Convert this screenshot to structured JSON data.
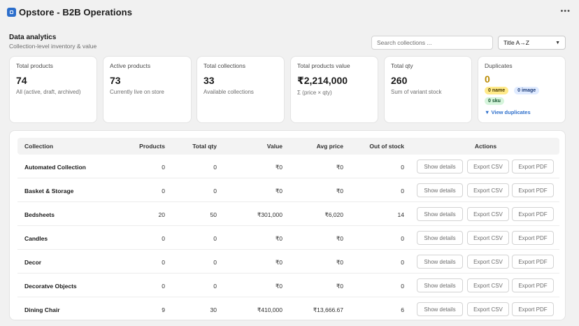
{
  "app": {
    "title": "Opstore - B2B Operations"
  },
  "section": {
    "title": "Data analytics",
    "subtitle": "Collection-level inventory & value"
  },
  "search": {
    "placeholder": "Search collections ..."
  },
  "sort": {
    "selected": "Title A→Z"
  },
  "cards": [
    {
      "label": "Total products",
      "value": "74",
      "sub": "All (active, draft, archived)"
    },
    {
      "label": "Active products",
      "value": "73",
      "sub": "Currently live on store"
    },
    {
      "label": "Total collections",
      "value": "33",
      "sub": "Available collections"
    },
    {
      "label": "Total products value",
      "value": "₹2,214,000",
      "sub": "Σ (price × qty)"
    },
    {
      "label": "Total qty",
      "value": "260",
      "sub": "Sum of variant stock"
    }
  ],
  "duplicates": {
    "label": "Duplicates",
    "value": "0",
    "name_badge": "0 name",
    "image_badge": "0 image",
    "sku_badge": "0 sku",
    "link": "▼ View duplicates"
  },
  "table": {
    "headers": {
      "collection": "Collection",
      "products": "Products",
      "qty": "Total qty",
      "value": "Value",
      "avg": "Avg price",
      "oos": "Out of stock",
      "actions": "Actions"
    },
    "actions": {
      "details": "Show details",
      "csv": "Export CSV",
      "pdf": "Export PDF"
    },
    "rows": [
      {
        "collection": "Automated Collection",
        "products": "0",
        "qty": "0",
        "value": "₹0",
        "avg": "₹0",
        "oos": "0"
      },
      {
        "collection": "Basket & Storage",
        "products": "0",
        "qty": "0",
        "value": "₹0",
        "avg": "₹0",
        "oos": "0"
      },
      {
        "collection": "Bedsheets",
        "products": "20",
        "qty": "50",
        "value": "₹301,000",
        "avg": "₹6,020",
        "oos": "14"
      },
      {
        "collection": "Candles",
        "products": "0",
        "qty": "0",
        "value": "₹0",
        "avg": "₹0",
        "oos": "0"
      },
      {
        "collection": "Decor",
        "products": "0",
        "qty": "0",
        "value": "₹0",
        "avg": "₹0",
        "oos": "0"
      },
      {
        "collection": "Decoratve Objects",
        "products": "0",
        "qty": "0",
        "value": "₹0",
        "avg": "₹0",
        "oos": "0"
      },
      {
        "collection": "Dining Chair",
        "products": "9",
        "qty": "30",
        "value": "₹410,000",
        "avg": "₹13,666.67",
        "oos": "6"
      }
    ]
  }
}
